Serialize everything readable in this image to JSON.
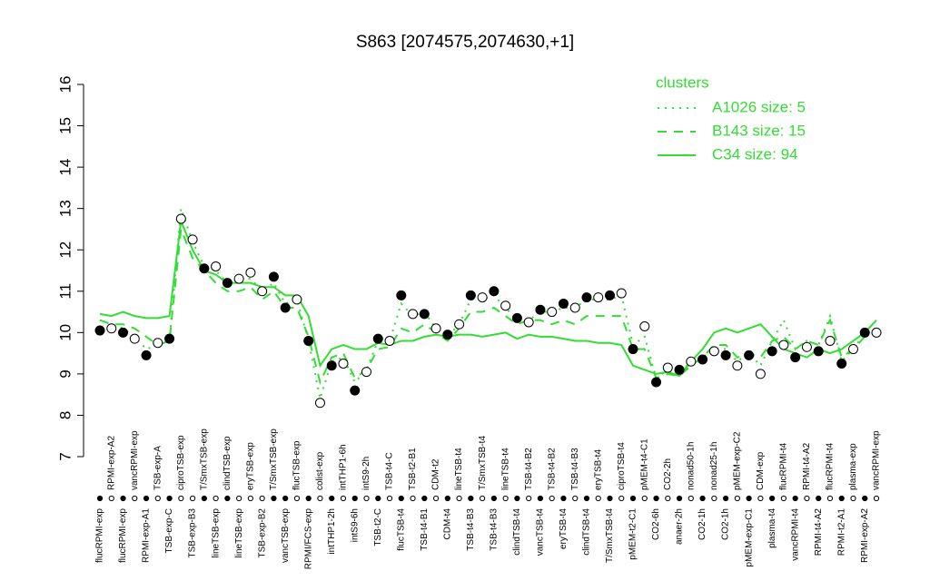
{
  "chart_data": {
    "type": "line",
    "title": "S863 [2074575,2074630,+1]",
    "legend_title": "clusters",
    "legend_position": "top-right",
    "categories": [
      "flucRPMI-exp",
      "RPMI-exp-A2",
      "flucRPMI-exp",
      "vancRPMI-exp",
      "RPMI-exp-A1",
      "TSB-exp-A",
      "TSB-exp-C",
      "ciproTSB-exp",
      "TSB-exp-B3",
      "T/SmxTSB-exp",
      "lineTSB-exp",
      "clindTSB-exp",
      "lineTSB-exp",
      "eryTSB-exp",
      "TSB-exp-B2",
      "T/SmxTSB-exp",
      "vancTSB-exp",
      "flucTSB-exp",
      "RPMI/FCS-exp",
      "colist-exp",
      "intTHP1-2h",
      "intTHP1-6h",
      "intS9-6h",
      "intS9-2h",
      "TSB-t2-C",
      "TSB-t4-C",
      "flucTSB-t4",
      "TSB-t2-B1",
      "TSB-t4-B1",
      "CDM-t2",
      "CDM-t4",
      "lineTSB-t4",
      "TSB-t4-B3",
      "T/SmxTSB-t4",
      "TSB-t4-B3",
      "lineTSB-t4",
      "clindTSB-t4",
      "TSB-t4-B2",
      "vancTSB-t4",
      "TSB-t4-B2",
      "eryTSB-t4",
      "TSB-t4-B3",
      "clindTSB-t4",
      "eryTSB-t4",
      "T/SmxTSB-t4",
      "ciproTSB-t4",
      "pMEM-t2-C1",
      "pMEM-t4-C1",
      "CO2-6h",
      "CO2-2h",
      "anaer-2h",
      "nonad50-1h",
      "CO2-1h",
      "nonad25-1h",
      "CO2-1h",
      "pMEM-exp-C2",
      "pMEM-exp-C1",
      "CDM-exp",
      "plasma-t4",
      "flucRPMI-t4",
      "vancRPMI-t4",
      "RPMI-t4-A2",
      "RPMI-t4-A2",
      "flucRPMI-t4",
      "RPMI-t2-A1",
      "plasma-exp",
      "RPMI-exp-A2",
      "vancRPMI-exp"
    ],
    "values": [
      10.05,
      10.1,
      10.0,
      9.85,
      9.45,
      9.75,
      9.85,
      12.75,
      12.25,
      11.55,
      11.6,
      11.2,
      11.3,
      11.45,
      11.0,
      11.35,
      10.6,
      10.8,
      9.8,
      8.3,
      9.2,
      9.25,
      8.6,
      9.05,
      9.85,
      9.8,
      10.9,
      10.45,
      10.45,
      10.1,
      9.95,
      10.2,
      10.9,
      10.85,
      11.0,
      10.65,
      10.35,
      10.25,
      10.55,
      10.5,
      10.7,
      10.6,
      10.85,
      10.85,
      10.9,
      10.95,
      9.6,
      10.15,
      8.8,
      9.15,
      9.1,
      9.3,
      9.35,
      9.55,
      9.45,
      9.2,
      9.45,
      9.0,
      9.55,
      9.7,
      9.4,
      9.65,
      9.55,
      9.8,
      9.25,
      9.6,
      10.0,
      10.0
    ],
    "filled": [
      true,
      false,
      true,
      false,
      true,
      false,
      true,
      false,
      false,
      true,
      false,
      true,
      false,
      false,
      false,
      true,
      true,
      false,
      true,
      false,
      true,
      false,
      true,
      false,
      true,
      false,
      true,
      false,
      true,
      false,
      true,
      false,
      true,
      false,
      true,
      false,
      true,
      false,
      true,
      false,
      true,
      false,
      true,
      false,
      true,
      false,
      true,
      false,
      true,
      false,
      true,
      false,
      true,
      false,
      true,
      false,
      true,
      false,
      true,
      false,
      true,
      false,
      true,
      false,
      true,
      false,
      true,
      false
    ],
    "point_color": "#000000",
    "series": [
      {
        "name": "A1026 size: 5",
        "color": "#33dd33",
        "dash": "dotted",
        "values": [
          10.3,
          10.2,
          10.1,
          9.9,
          9.6,
          9.7,
          9.8,
          13.0,
          12.2,
          11.6,
          11.5,
          11.2,
          11.3,
          11.3,
          11.0,
          11.2,
          10.7,
          10.8,
          9.8,
          8.4,
          9.3,
          9.4,
          8.8,
          9.1,
          9.8,
          9.8,
          10.7,
          10.4,
          10.5,
          10.1,
          9.9,
          10.2,
          10.8,
          10.8,
          10.9,
          10.6,
          10.3,
          10.3,
          10.5,
          10.5,
          10.6,
          10.6,
          10.8,
          10.8,
          10.8,
          10.9,
          9.7,
          9.9,
          8.9,
          9.1,
          9.0,
          9.3,
          9.4,
          9.6,
          9.6,
          9.3,
          9.5,
          9.2,
          9.8,
          10.3,
          9.6,
          9.8,
          9.7,
          10.4,
          9.3,
          9.6,
          10.0,
          10.1
        ]
      },
      {
        "name": "B143 size: 15",
        "color": "#33dd33",
        "dash": "dashed",
        "values": [
          10.3,
          10.2,
          10.2,
          10.1,
          9.9,
          9.7,
          9.8,
          12.5,
          11.8,
          11.5,
          11.2,
          11.0,
          11.0,
          11.1,
          10.8,
          11.0,
          10.6,
          10.6,
          9.9,
          8.8,
          9.4,
          9.5,
          8.9,
          9.1,
          9.6,
          9.65,
          10.1,
          10.0,
          10.2,
          10.0,
          9.8,
          10.1,
          10.5,
          10.5,
          10.6,
          10.4,
          10.2,
          10.3,
          10.3,
          10.2,
          10.3,
          10.2,
          10.4,
          10.4,
          10.4,
          10.4,
          9.6,
          9.6,
          8.9,
          9.0,
          8.95,
          9.2,
          9.4,
          9.7,
          9.7,
          9.4,
          9.5,
          9.4,
          9.8,
          9.9,
          9.6,
          9.8,
          9.7,
          10.3,
          9.4,
          9.6,
          9.9,
          10.0
        ]
      },
      {
        "name": "C34 size: 94",
        "color": "#33dd33",
        "dash": "solid",
        "values": [
          10.45,
          10.4,
          10.5,
          10.4,
          10.35,
          10.35,
          10.4,
          12.7,
          12.0,
          11.5,
          11.4,
          11.2,
          11.2,
          11.2,
          11.1,
          11.1,
          10.9,
          10.9,
          10.4,
          9.2,
          9.6,
          9.7,
          9.6,
          9.6,
          9.75,
          9.7,
          9.8,
          9.8,
          9.9,
          9.95,
          9.9,
          9.95,
          9.95,
          9.9,
          9.95,
          10.0,
          9.85,
          9.95,
          9.9,
          9.9,
          9.85,
          9.8,
          9.8,
          9.75,
          9.75,
          9.7,
          9.2,
          9.1,
          9.0,
          9.05,
          8.95,
          9.3,
          9.6,
          10.0,
          10.1,
          10.0,
          10.1,
          10.2,
          9.9,
          9.6,
          9.5,
          9.4,
          9.6,
          9.5,
          9.6,
          9.8,
          10.0,
          10.3
        ]
      }
    ],
    "ylim": [
      7,
      16
    ],
    "yticks": [
      7,
      8,
      9,
      10,
      11,
      12,
      13,
      14,
      15,
      16
    ]
  }
}
